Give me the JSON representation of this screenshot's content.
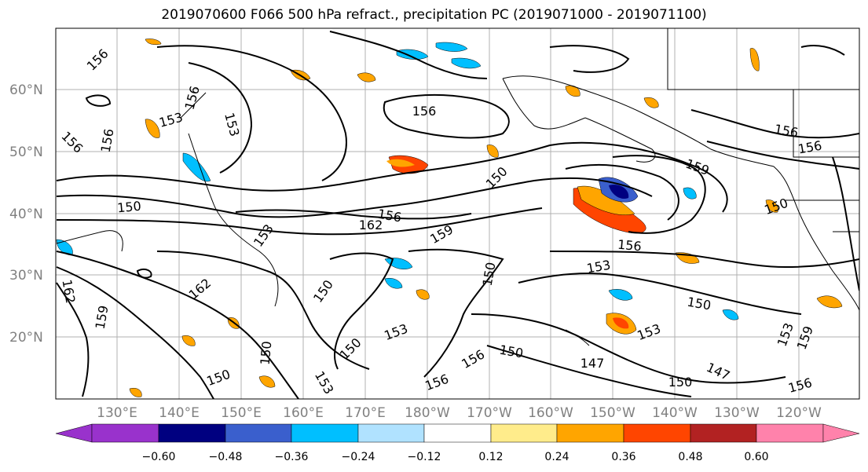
{
  "title": "2019070600 F066 500 hPa refract., precipitation PC (2019071000 - 2019071100)",
  "lat_labels": [
    "60°N",
    "50°N",
    "40°N",
    "30°N",
    "20°N"
  ],
  "lon_labels": [
    "130°E",
    "140°E",
    "150°E",
    "160°E",
    "170°E",
    "180°W",
    "170°W",
    "160°W",
    "150°W",
    "140°W",
    "130°W",
    "120°W"
  ],
  "contour_labels": [
    "156",
    "153",
    "156",
    "153",
    "156",
    "150",
    "156",
    "162",
    "153",
    "159",
    "150",
    "156",
    "159",
    "150",
    "156",
    "153",
    "150",
    "150",
    "147",
    "150",
    "150",
    "147",
    "153",
    "162",
    "159",
    "156",
    "153",
    "156",
    "153",
    "159",
    "150",
    "156",
    "156",
    "150",
    "162",
    "156",
    "150",
    "150",
    "153",
    "156"
  ],
  "colorbar": {
    "colors": [
      "#9932CC",
      "#000080",
      "#3A5FCD",
      "#00BFFF",
      "#B0E2FF",
      "#FFFFFF",
      "#FFEC8B",
      "#FFA500",
      "#FF4500",
      "#B22222",
      "#FF82AB"
    ],
    "ticks": [
      "−0.60",
      "−0.48",
      "−0.36",
      "−0.24",
      "−0.12",
      "0.12",
      "0.24",
      "0.36",
      "0.48",
      "0.60"
    ]
  }
}
